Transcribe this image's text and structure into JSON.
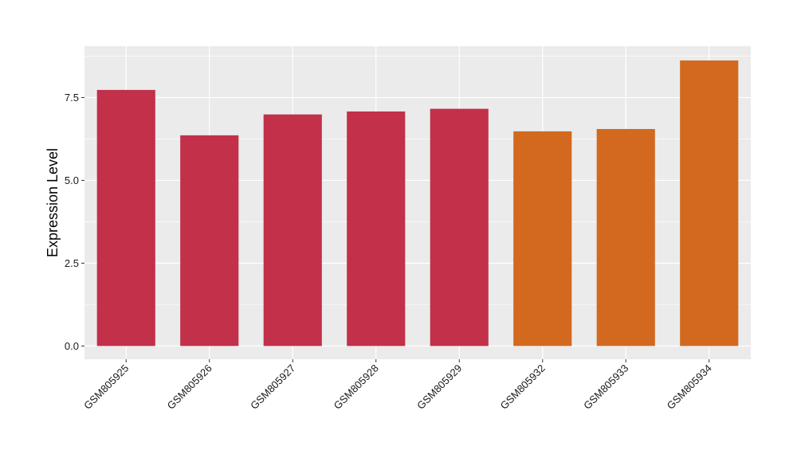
{
  "chart_data": {
    "type": "bar",
    "title": "",
    "xlabel": "",
    "ylabel": "Expression Level",
    "categories": [
      "GSM805925",
      "GSM805926",
      "GSM805927",
      "GSM805928",
      "GSM805929",
      "GSM805932",
      "GSM805933",
      "GSM805934"
    ],
    "values": [
      7.73,
      6.36,
      6.99,
      7.08,
      7.16,
      6.48,
      6.55,
      8.62
    ],
    "bar_colors": [
      "#c23049",
      "#c23049",
      "#c23049",
      "#c23049",
      "#c23049",
      "#d2691f",
      "#d2691f",
      "#d2691f"
    ],
    "ylim": [
      -0.4,
      9.05
    ],
    "yticks": [
      0.0,
      2.5,
      5.0,
      7.5
    ],
    "ytick_labels": [
      "0.0",
      "2.5",
      "5.0",
      "7.5"
    ],
    "grid": true,
    "panel_background": "#ebebeb",
    "grid_color": "#ffffff",
    "legend": "none"
  }
}
